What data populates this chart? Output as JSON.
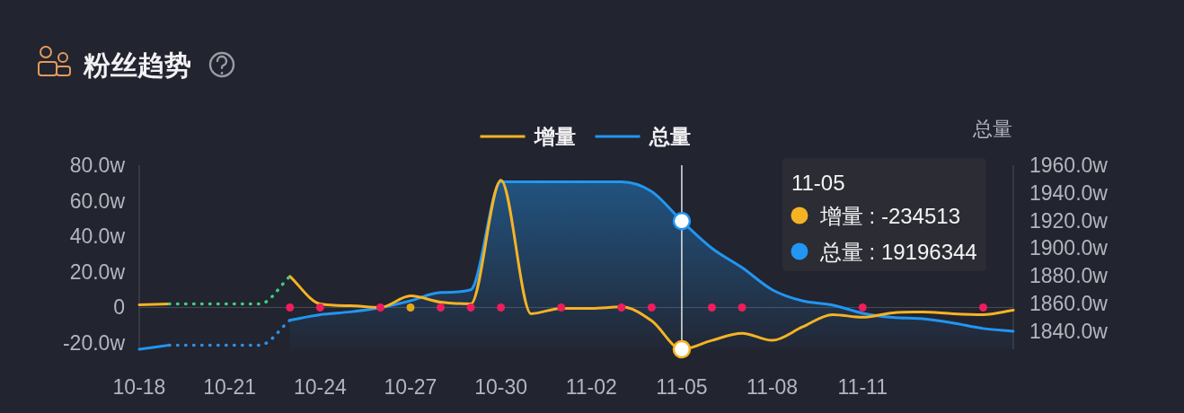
{
  "chart_data": {
    "type": "line",
    "title": "粉丝趋势",
    "y2label": "总量",
    "legend": "top",
    "categories": [
      "10-18",
      null,
      null,
      "10-21",
      null,
      null,
      "10-24",
      null,
      null,
      "10-27",
      null,
      null,
      "10-30",
      null,
      null,
      "11-02",
      null,
      null,
      "11-05",
      null,
      null,
      "11-08",
      null,
      null,
      "11-11",
      null,
      null,
      null,
      null,
      null
    ],
    "ylim": [
      -23.5,
      80
    ],
    "yticks": [
      {
        "value": -20,
        "label": "-20.0w"
      },
      0,
      {
        "value": 20,
        "label": "20.0w"
      },
      {
        "value": 40,
        "label": "40.0w"
      },
      {
        "value": 60,
        "label": "60.0w"
      },
      {
        "value": 80,
        "label": "80.0w"
      }
    ],
    "y2lim": [
      1827,
      1960
    ],
    "y2ticks": [
      {
        "value": 1840,
        "label": "1840.0w"
      },
      {
        "value": 1860,
        "label": "1860.0w"
      },
      {
        "value": 1880,
        "label": "1880.0w"
      },
      {
        "value": 1900,
        "label": "1900.0w"
      },
      {
        "value": 1920,
        "label": "1920.0w"
      },
      {
        "value": 1940,
        "label": "1940.0w"
      },
      {
        "value": 1960,
        "label": "1960.0w"
      }
    ],
    "series": [
      {
        "name": "增量",
        "color": "#f5b324",
        "values": [
          1.5,
          2,
          null,
          null,
          null,
          17.5,
          2,
          1,
          0,
          6.5,
          3,
          2,
          71.5,
          -3.5,
          -0.5,
          -0.5,
          0.3,
          -7.5,
          -23.4513,
          -18.5,
          -14.5,
          -18.5,
          -11,
          -4,
          -5.5,
          -3,
          -2.5,
          -3.5,
          -4,
          -1.5
        ]
      },
      {
        "name": "总量",
        "type": "area",
        "axis": "y2",
        "color": "#2196f3",
        "values": [
          1827,
          1830,
          null,
          null,
          null,
          1848,
          1852,
          1854,
          1857,
          1862,
          1868,
          1870,
          1948,
          1948,
          1948,
          1948,
          1948,
          1941,
          1919.6344,
          1900,
          1886,
          1870,
          1862,
          1859,
          1853,
          1850,
          1849,
          1846,
          1842,
          1840
        ]
      },
      {
        "line_style": "dotted",
        "color": "#3bd07f",
        "values": [
          null,
          2,
          2,
          2,
          2,
          17.5,
          null,
          null,
          null,
          null,
          null,
          null,
          null,
          null,
          null,
          null,
          null,
          null,
          null,
          null,
          null,
          null,
          null,
          null,
          null,
          null,
          null,
          null,
          null,
          null
        ]
      },
      {
        "axis": "y2",
        "line_style": "dotted",
        "color": "#2e8fe6",
        "values": [
          null,
          1830,
          1830,
          1830,
          1830,
          1848,
          null,
          null,
          null,
          null,
          null,
          null,
          null,
          null,
          null,
          null,
          null,
          null,
          null,
          null,
          null,
          null,
          null,
          null,
          null,
          null,
          null,
          null,
          null,
          null
        ]
      },
      {
        "type": "scatter",
        "color": "#ee1d5c",
        "values": [
          null,
          null,
          null,
          null,
          null,
          0,
          0,
          null,
          0,
          null,
          0,
          0,
          0,
          null,
          0,
          null,
          0,
          0,
          null,
          0,
          0,
          null,
          null,
          null,
          0,
          null,
          null,
          null,
          0,
          null
        ]
      },
      {
        "type": "scatter",
        "color": "#e6a817",
        "values": [
          null,
          null,
          null,
          null,
          null,
          null,
          null,
          null,
          null,
          0,
          null,
          null,
          null,
          null,
          null,
          null,
          null,
          null,
          null,
          null,
          null,
          null,
          null,
          null,
          null,
          null,
          null,
          null,
          null,
          null
        ]
      }
    ],
    "ref_lines": [
      {
        "axis": "x",
        "value": "11-05",
        "color": "#e6e6e6"
      }
    ],
    "annotations": [
      "11-05",
      "增量 : -234513",
      "总量 : 19196344"
    ]
  }
}
